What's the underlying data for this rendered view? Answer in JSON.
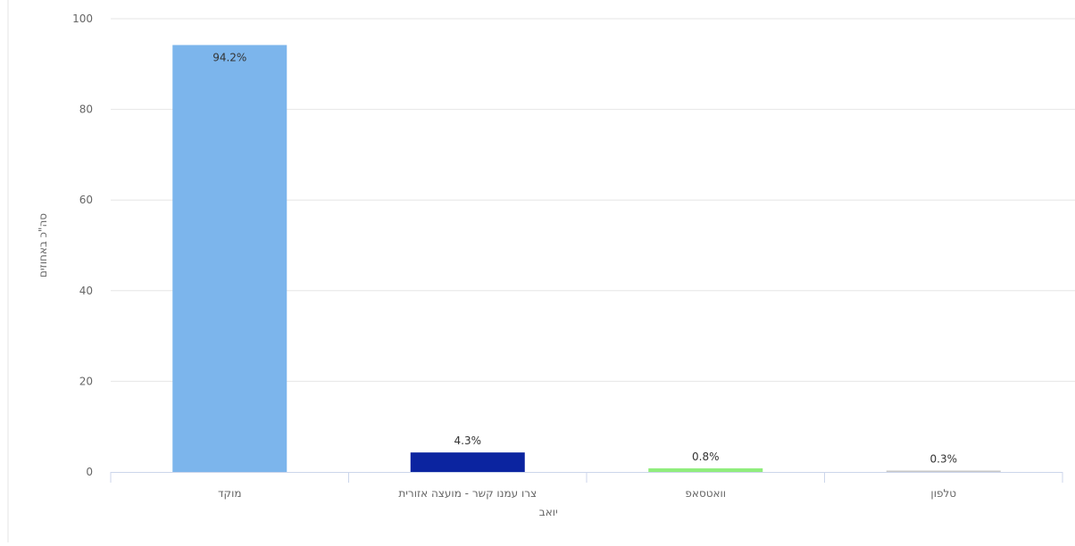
{
  "chart_data": {
    "type": "bar",
    "categories": [
      "מוקד",
      "צרו עמנו קשר - מועצה אזורית יואב",
      "וואטסאפ",
      "טלפון"
    ],
    "category_lines": [
      [
        "מוקד"
      ],
      [
        "צרו עמנו קשר - מועצה אזורית",
        "יואב"
      ],
      [
        "וואטסאפ"
      ],
      [
        "טלפון"
      ]
    ],
    "values": [
      94.2,
      4.3,
      0.8,
      0.3
    ],
    "data_labels": [
      "94.2%",
      "4.3%",
      "0.8%",
      "0.3%"
    ],
    "colors": [
      "#7cb5ec",
      "#0b24a0",
      "#90ed7d",
      "#c8c8c8"
    ],
    "title": "",
    "xlabel": "",
    "ylabel": "סה\"כ באחוזים",
    "ylim": [
      0,
      100
    ],
    "yticks": [
      0,
      20,
      40,
      60,
      80,
      100
    ],
    "grid": true,
    "legend": "none"
  }
}
